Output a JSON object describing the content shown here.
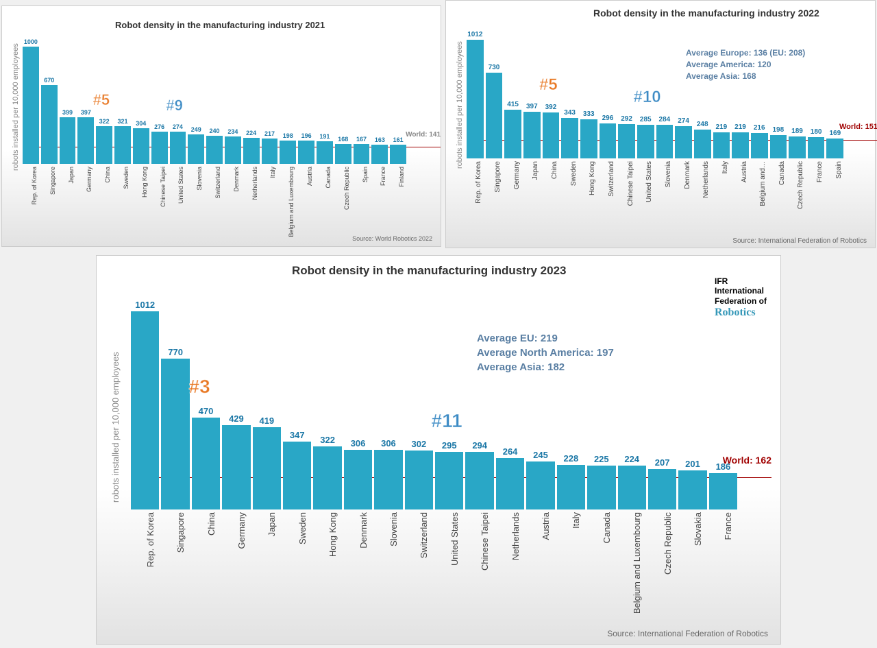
{
  "colors": {
    "bar": "#29a7c6",
    "value_text": "#1b77a6",
    "world_line": "#a00000",
    "world_label_gray": "#888",
    "avg_text": "#5a7fa3",
    "rank_orange": "#e87722",
    "rank_blue": "#3b8ac4"
  },
  "panels": [
    {
      "id": "p2021",
      "type": "bar",
      "title": "Robot density in the manufacturing industry 2021",
      "title_fontsize": 13,
      "ylabel": "robots installed per 10,000 employees",
      "ymax": 1050,
      "world_value": 141,
      "world_label": "World: 141",
      "world_label_style": "gray",
      "source": "Source: World Robotics 2022",
      "value_fontsize": 9,
      "label_fontsize": 9,
      "rank_annotations": [
        {
          "text": "#5",
          "color": "orange",
          "bar_index": 4,
          "fontsize": 22
        },
        {
          "text": "#9",
          "color": "blue",
          "bar_index": 8,
          "fontsize": 22
        }
      ],
      "data": [
        {
          "label": "Rep. of Korea",
          "value": 1000
        },
        {
          "label": "Singapore",
          "value": 670
        },
        {
          "label": "Japan",
          "value": 399
        },
        {
          "label": "Germany",
          "value": 397
        },
        {
          "label": "China",
          "value": 322
        },
        {
          "label": "Sweden",
          "value": 321
        },
        {
          "label": "Hong Kong",
          "value": 304
        },
        {
          "label": "Chinese Taipei",
          "value": 276
        },
        {
          "label": "United States",
          "value": 274
        },
        {
          "label": "Slovenia",
          "value": 249
        },
        {
          "label": "Switzerland",
          "value": 240
        },
        {
          "label": "Denmark",
          "value": 234
        },
        {
          "label": "Netherlands",
          "value": 224
        },
        {
          "label": "Italy",
          "value": 217
        },
        {
          "label": "Belgium and Luxembourg",
          "value": 198
        },
        {
          "label": "Austria",
          "value": 196
        },
        {
          "label": "Canada",
          "value": 191
        },
        {
          "label": "Czech Republic",
          "value": 168
        },
        {
          "label": "Spain",
          "value": 167
        },
        {
          "label": "France",
          "value": 163
        },
        {
          "label": "Finland",
          "value": 161
        }
      ],
      "averages": []
    },
    {
      "id": "p2022",
      "type": "bar",
      "title": "Robot density in the manufacturing industry 2022",
      "title_fontsize": 14,
      "ylabel": "robots installed per 10,000 employees",
      "ymax": 1050,
      "world_value": 151,
      "world_label": "World: 151",
      "world_label_style": "red",
      "source": "Source: International Federation of Robotics",
      "value_fontsize": 10,
      "label_fontsize": 10,
      "rank_annotations": [
        {
          "text": "#5",
          "color": "orange",
          "bar_index": 4,
          "fontsize": 24
        },
        {
          "text": "#10",
          "color": "blue",
          "bar_index": 9,
          "fontsize": 24
        }
      ],
      "averages": [
        "Average Europe: 136   (EU: 208)",
        "Average America: 120",
        "Average Asia: 168"
      ],
      "avg_fontsize": 12,
      "data": [
        {
          "label": "Rep. of Korea",
          "value": 1012
        },
        {
          "label": "Singapore",
          "value": 730
        },
        {
          "label": "Germany",
          "value": 415
        },
        {
          "label": "Japan",
          "value": 397
        },
        {
          "label": "China",
          "value": 392
        },
        {
          "label": "Sweden",
          "value": 343
        },
        {
          "label": "Hong Kong",
          "value": 333
        },
        {
          "label": "Switzerland",
          "value": 296
        },
        {
          "label": "Chinese Taipei",
          "value": 292
        },
        {
          "label": "United States",
          "value": 285
        },
        {
          "label": "Slovenia",
          "value": 284
        },
        {
          "label": "Denmark",
          "value": 274
        },
        {
          "label": "Netherlands",
          "value": 248
        },
        {
          "label": "Italy",
          "value": 219
        },
        {
          "label": "Austria",
          "value": 219
        },
        {
          "label": "Belgium and…",
          "value": 216
        },
        {
          "label": "Canada",
          "value": 198
        },
        {
          "label": "Czech Republic",
          "value": 189
        },
        {
          "label": "France",
          "value": 180
        },
        {
          "label": "Spain",
          "value": 169
        }
      ]
    },
    {
      "id": "p2023",
      "type": "bar",
      "title": "Robot density in the manufacturing industry 2023",
      "title_fontsize": 17,
      "ylabel": "robots installed per 10,000 employees",
      "ymax": 1050,
      "world_value": 162,
      "world_label": "World: 162",
      "world_label_style": "red",
      "source": "Source: International Federation of Robotics",
      "value_fontsize": 13,
      "label_fontsize": 13,
      "rank_annotations": [
        {
          "text": "#3",
          "color": "orange",
          "bar_index": 2,
          "fontsize": 28
        },
        {
          "text": "#11",
          "color": "blue",
          "bar_index": 10,
          "fontsize": 28
        }
      ],
      "averages": [
        "Average EU: 219",
        "Average North America: 197",
        "Average Asia: 182"
      ],
      "avg_fontsize": 15,
      "logo": {
        "line1": "IFR",
        "line2": "International",
        "line3": "Federation of",
        "line4": "Robotics"
      },
      "data": [
        {
          "label": "Rep. of Korea",
          "value": 1012
        },
        {
          "label": "Singapore",
          "value": 770
        },
        {
          "label": "China",
          "value": 470
        },
        {
          "label": "Germany",
          "value": 429
        },
        {
          "label": "Japan",
          "value": 419
        },
        {
          "label": "Sweden",
          "value": 347
        },
        {
          "label": "Hong Kong",
          "value": 322
        },
        {
          "label": "Denmark",
          "value": 306
        },
        {
          "label": "Slovenia",
          "value": 306
        },
        {
          "label": "Switzerland",
          "value": 302
        },
        {
          "label": "United States",
          "value": 295
        },
        {
          "label": "Chinese Taipei",
          "value": 294
        },
        {
          "label": "Netherlands",
          "value": 264
        },
        {
          "label": "Austria",
          "value": 245
        },
        {
          "label": "Italy",
          "value": 228
        },
        {
          "label": "Canada",
          "value": 225
        },
        {
          "label": "Belgium and Luxembourg",
          "value": 224
        },
        {
          "label": "Czech Republic",
          "value": 207
        },
        {
          "label": "Slovakia",
          "value": 201
        },
        {
          "label": "France",
          "value": 186
        }
      ]
    }
  ]
}
